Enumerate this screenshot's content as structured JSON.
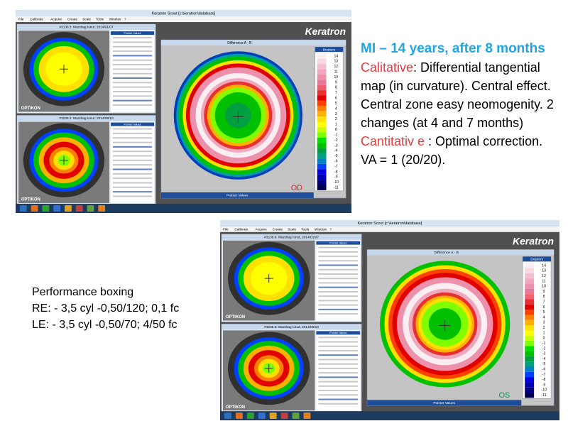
{
  "slide": {
    "heading": "MI – 14 years, after 8 months",
    "calitative_label": "Calitative",
    "calitative_text": ": Differential tangential map  (in curvature). Central effect. Central zone easy neomogenity. 2 changes (at 4 and 7 months)",
    "cantitative_label": "Cantitativ e",
    "cantitative_text": " : Optimal correction.",
    "va": "VA = 1 (20/20).",
    "performance": [
      "Performance boxing",
      "RE: - 3,5 cyl -0,50/120; 0,1 fc",
      "LE: - 3,5 cyl -0,50/70; 4/50 fc"
    ]
  },
  "legend": {
    "title": "Diopters",
    "values": [
      14,
      13,
      12,
      11,
      10,
      9,
      8,
      7,
      6,
      5,
      4,
      3,
      2,
      1,
      0,
      -1,
      -2,
      -3,
      -4,
      -5,
      -6,
      -7,
      -8,
      -9,
      -10,
      -11
    ],
    "colors": [
      "#fbeef2",
      "#f8d8e2",
      "#f4c0d0",
      "#f0a8be",
      "#ec90ac",
      "#e8789a",
      "#f06070",
      "#e83030",
      "#e00000",
      "#ff4000",
      "#ff8000",
      "#ffb000",
      "#ffe000",
      "#ffff00",
      "#c8ff00",
      "#80ff00",
      "#00e000",
      "#00c000",
      "#00a040",
      "#00a080",
      "#0080c0",
      "#0040ff",
      "#0000e0",
      "#0000b0",
      "#000080",
      "#000050"
    ]
  },
  "screenshots": [
    {
      "app_title": "Keratron Scout [c:\\keratron\\database]",
      "menu": [
        "File",
        "Calibrate",
        "Acquire",
        "Create",
        "Scale",
        "Tools",
        "Window",
        "?"
      ],
      "logo": "Keratron",
      "diff_title": "Difference A - B",
      "eye": "OD",
      "exam_a": "#3136.3: Mazdrag Ionut, 2014/01/07",
      "exam_b": "#3235.3: Mazdrag Ionut, 2014/09/10",
      "brand": "OPTIKON",
      "pointer": "Pointer Values"
    },
    {
      "app_title": "Keratron Scout [c:\\keratron\\database]",
      "menu": [
        "File",
        "Calibrate",
        "Acquire",
        "Create",
        "Scale",
        "Tools",
        "Window",
        "?"
      ],
      "logo": "Keratron",
      "diff_title": "Difference A - B",
      "eye": "OS",
      "exam_a": "#3136.6: Mazdrag Ionut, 2014/01/07",
      "exam_b": "#3235.6: Mazdrag Ionut, 2014/09/10",
      "brand": "OPTIKON",
      "pointer": "Pointer Values"
    }
  ]
}
